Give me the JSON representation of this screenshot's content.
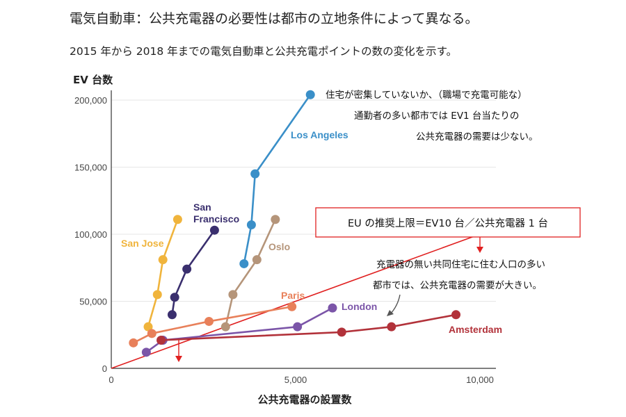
{
  "header": {
    "title": "電気自動車：公共充電器の必要性は都市の立地条件によって異なる。",
    "subtitle": "2015 年から 2018 年までの電気自動車と公共充電ポイントの数の変化を示す。"
  },
  "chart_data": {
    "type": "scatter",
    "xlabel": "公共充電器の設置数",
    "ylabel": "EV 台数",
    "xlim": [
      0,
      10500
    ],
    "ylim": [
      0,
      205000
    ],
    "x_ticks": [
      0,
      5000,
      10000
    ],
    "x_tick_labels": [
      "0",
      "5,000",
      "10,000"
    ],
    "y_ticks": [
      0,
      50000,
      100000,
      150000,
      200000
    ],
    "y_tick_labels": [
      "0",
      "50,000",
      "100,000",
      "150,000",
      "200,000"
    ],
    "grid": "horizontal",
    "series": [
      {
        "name": "San Jose",
        "color": "#F0B43C",
        "x": [
          1000,
          1250,
          1400,
          1800
        ],
        "y": [
          31000,
          55000,
          81000,
          111000
        ]
      },
      {
        "name": "San Francisco",
        "color": "#3A2F6E",
        "x": [
          1650,
          1720,
          2050,
          2800
        ],
        "y": [
          40000,
          53000,
          74000,
          103000
        ]
      },
      {
        "name": "Oslo",
        "color": "#B5957A",
        "x": [
          3100,
          3300,
          3950,
          4450
        ],
        "y": [
          31000,
          55000,
          81000,
          111000
        ]
      },
      {
        "name": "Los Angeles",
        "color": "#3A8FC8",
        "x": [
          3600,
          3800,
          3900,
          5400
        ],
        "y": [
          78000,
          107000,
          145000,
          204000
        ]
      },
      {
        "name": "Paris",
        "color": "#E8805A",
        "x": [
          600,
          1100,
          2650,
          4900
        ],
        "y": [
          19000,
          26000,
          35000,
          46000
        ]
      },
      {
        "name": "London",
        "color": "#7B55A8",
        "x": [
          950,
          1400,
          5050,
          6000
        ],
        "y": [
          12000,
          21000,
          31000,
          45000
        ]
      },
      {
        "name": "Amsterdam",
        "color": "#B2323A",
        "x": [
          1350,
          6250,
          7600,
          9350
        ],
        "y": [
          21000,
          27000,
          31000,
          40000
        ]
      }
    ],
    "reference_line": {
      "label": "EU の推奨上限＝EV10 台／公共充電器 1 台",
      "ratio": 10,
      "color": "#E02020"
    },
    "annotations": {
      "la_note": [
        "住宅が密集していないか、（職場で充電可能な）",
        "通勤者の多い都市では EV1 台当たりの",
        "公共充電器の需要は少ない。"
      ],
      "dense_note": [
        "充電器の無い共同住宅に住む人口の多い",
        "都市では、公共充電器の需要が大きい。"
      ]
    }
  }
}
